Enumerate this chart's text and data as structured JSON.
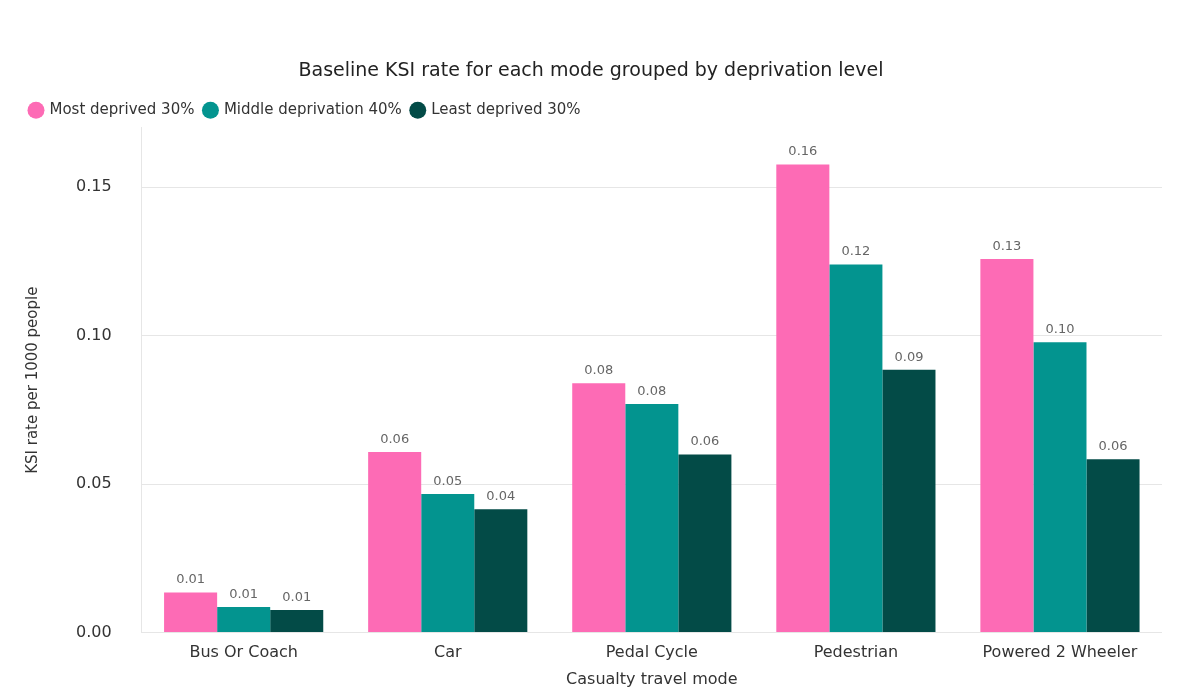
{
  "chart_data": {
    "type": "bar",
    "title": "Baseline KSI rate for each mode grouped by deprivation level",
    "xlabel": "Casualty travel mode",
    "ylabel": "KSI rate per 1000 people",
    "categories": [
      "Bus Or Coach",
      "Car",
      "Pedal Cycle",
      "Pedestrian",
      "Powered 2 Wheeler"
    ],
    "series": [
      {
        "name": "Most deprived 30%",
        "color": "#fd6bb5",
        "values": [
          0.0135,
          0.0608,
          0.084,
          0.1576,
          0.1258
        ],
        "value_labels": [
          "0.01",
          "0.06",
          "0.08",
          "0.16",
          "0.13"
        ]
      },
      {
        "name": "Middle deprivation 40%",
        "color": "#03948f",
        "values": [
          0.0086,
          0.0467,
          0.077,
          0.124,
          0.0978
        ],
        "value_labels": [
          "0.01",
          "0.05",
          "0.08",
          "0.12",
          "0.10"
        ]
      },
      {
        "name": "Least deprived 30%",
        "color": "#034b47",
        "values": [
          0.0076,
          0.0415,
          0.06,
          0.0885,
          0.0584
        ],
        "value_labels": [
          "0.01",
          "0.04",
          "0.06",
          "0.09",
          "0.06"
        ]
      }
    ],
    "ylim": [
      0,
      0.17
    ],
    "yticks": [
      {
        "value": 0,
        "label": "0.00"
      },
      {
        "value": 0.05,
        "label": "0.05"
      },
      {
        "value": 0.1,
        "label": "0.10"
      },
      {
        "value": 0.15,
        "label": "0.15"
      }
    ],
    "grid": "y",
    "legend": "top left",
    "marker": "circle"
  }
}
